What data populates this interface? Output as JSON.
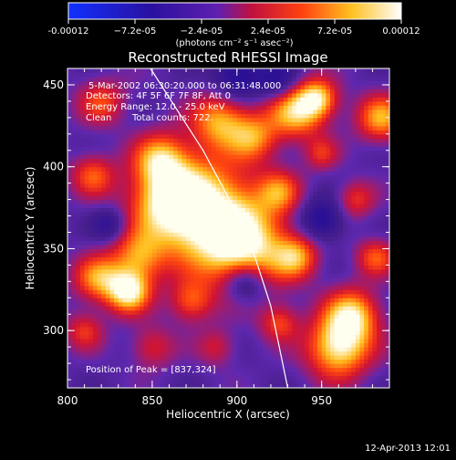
{
  "chart_data": {
    "type": "heatmap",
    "title": "Reconstructed RHESSI Image",
    "xlabel": "Heliocentric X (arcsec)",
    "ylabel": "Heliocentric Y (arcsec)",
    "xlim": [
      800,
      990
    ],
    "ylim": [
      265,
      460
    ],
    "x_ticks": [
      "800",
      "850",
      "900",
      "950"
    ],
    "y_ticks": [
      "300",
      "350",
      "400",
      "450"
    ],
    "colorbar": {
      "ticks": [
        "-0.00012",
        "−7.2e-05",
        "−2.4e-05",
        "2.4e-05",
        "7.2e-05",
        "0.00012"
      ],
      "range": [
        -0.00012,
        0.00012
      ],
      "unit_label": "(photons cm⁻² s⁻¹ asec⁻²)"
    },
    "annotations": {
      "time": "5-Mar-2002 06:30:20.000 to 06:31:48.000",
      "detectors": "Detectors: 4F 5F 6F 7F 8F, Att 0",
      "energy": "Energy Range: 12.0 - 25.0 keV",
      "algorithm": "Clean",
      "total_counts": "Total counts: 722.",
      "peak": "Position of Peak = [837,324]"
    },
    "limb_line": [
      [
        849,
        460
      ],
      [
        880,
        410
      ],
      [
        906,
        360
      ],
      [
        920,
        315
      ],
      [
        930,
        265
      ]
    ],
    "blobs": [
      {
        "x": 882,
        "y": 372,
        "r": 22,
        "v": 1.0
      },
      {
        "x": 905,
        "y": 350,
        "r": 18,
        "v": 0.9
      },
      {
        "x": 860,
        "y": 380,
        "r": 16,
        "v": 0.8
      },
      {
        "x": 836,
        "y": 324,
        "r": 9,
        "v": 1.0
      },
      {
        "x": 842,
        "y": 345,
        "r": 11,
        "v": 0.65
      },
      {
        "x": 960,
        "y": 290,
        "r": 13,
        "v": 1.0
      },
      {
        "x": 968,
        "y": 310,
        "r": 11,
        "v": 0.85
      },
      {
        "x": 935,
        "y": 435,
        "r": 12,
        "v": 0.9
      },
      {
        "x": 948,
        "y": 442,
        "r": 8,
        "v": 0.7
      },
      {
        "x": 890,
        "y": 428,
        "r": 12,
        "v": 0.75
      },
      {
        "x": 855,
        "y": 405,
        "r": 11,
        "v": 0.7
      },
      {
        "x": 818,
        "y": 332,
        "r": 10,
        "v": 0.7
      },
      {
        "x": 810,
        "y": 300,
        "r": 8,
        "v": 0.45
      },
      {
        "x": 910,
        "y": 418,
        "r": 10,
        "v": 0.6
      },
      {
        "x": 925,
        "y": 385,
        "r": 9,
        "v": 0.55
      },
      {
        "x": 935,
        "y": 345,
        "r": 9,
        "v": 0.65
      },
      {
        "x": 925,
        "y": 305,
        "r": 8,
        "v": 0.5
      },
      {
        "x": 873,
        "y": 318,
        "r": 9,
        "v": 0.55
      },
      {
        "x": 985,
        "y": 430,
        "r": 10,
        "v": 0.75
      },
      {
        "x": 982,
        "y": 345,
        "r": 8,
        "v": 0.55
      },
      {
        "x": 970,
        "y": 380,
        "r": 8,
        "v": 0.45
      },
      {
        "x": 820,
        "y": 440,
        "r": 10,
        "v": 0.5
      },
      {
        "x": 815,
        "y": 395,
        "r": 9,
        "v": 0.55
      },
      {
        "x": 950,
        "y": 408,
        "r": 7,
        "v": 0.4
      },
      {
        "x": 888,
        "y": 290,
        "r": 8,
        "v": 0.35
      },
      {
        "x": 850,
        "y": 290,
        "r": 9,
        "v": 0.4
      },
      {
        "x": 905,
        "y": 330,
        "r": -9,
        "v": -0.6
      },
      {
        "x": 950,
        "y": 368,
        "r": -9,
        "v": -0.55
      },
      {
        "x": 900,
        "y": 455,
        "r": -10,
        "v": -0.55
      },
      {
        "x": 925,
        "y": 452,
        "r": -9,
        "v": -0.5
      },
      {
        "x": 825,
        "y": 365,
        "r": -7,
        "v": -0.4
      }
    ]
  },
  "footer": {
    "date": "12-Apr-2013 12:01"
  }
}
